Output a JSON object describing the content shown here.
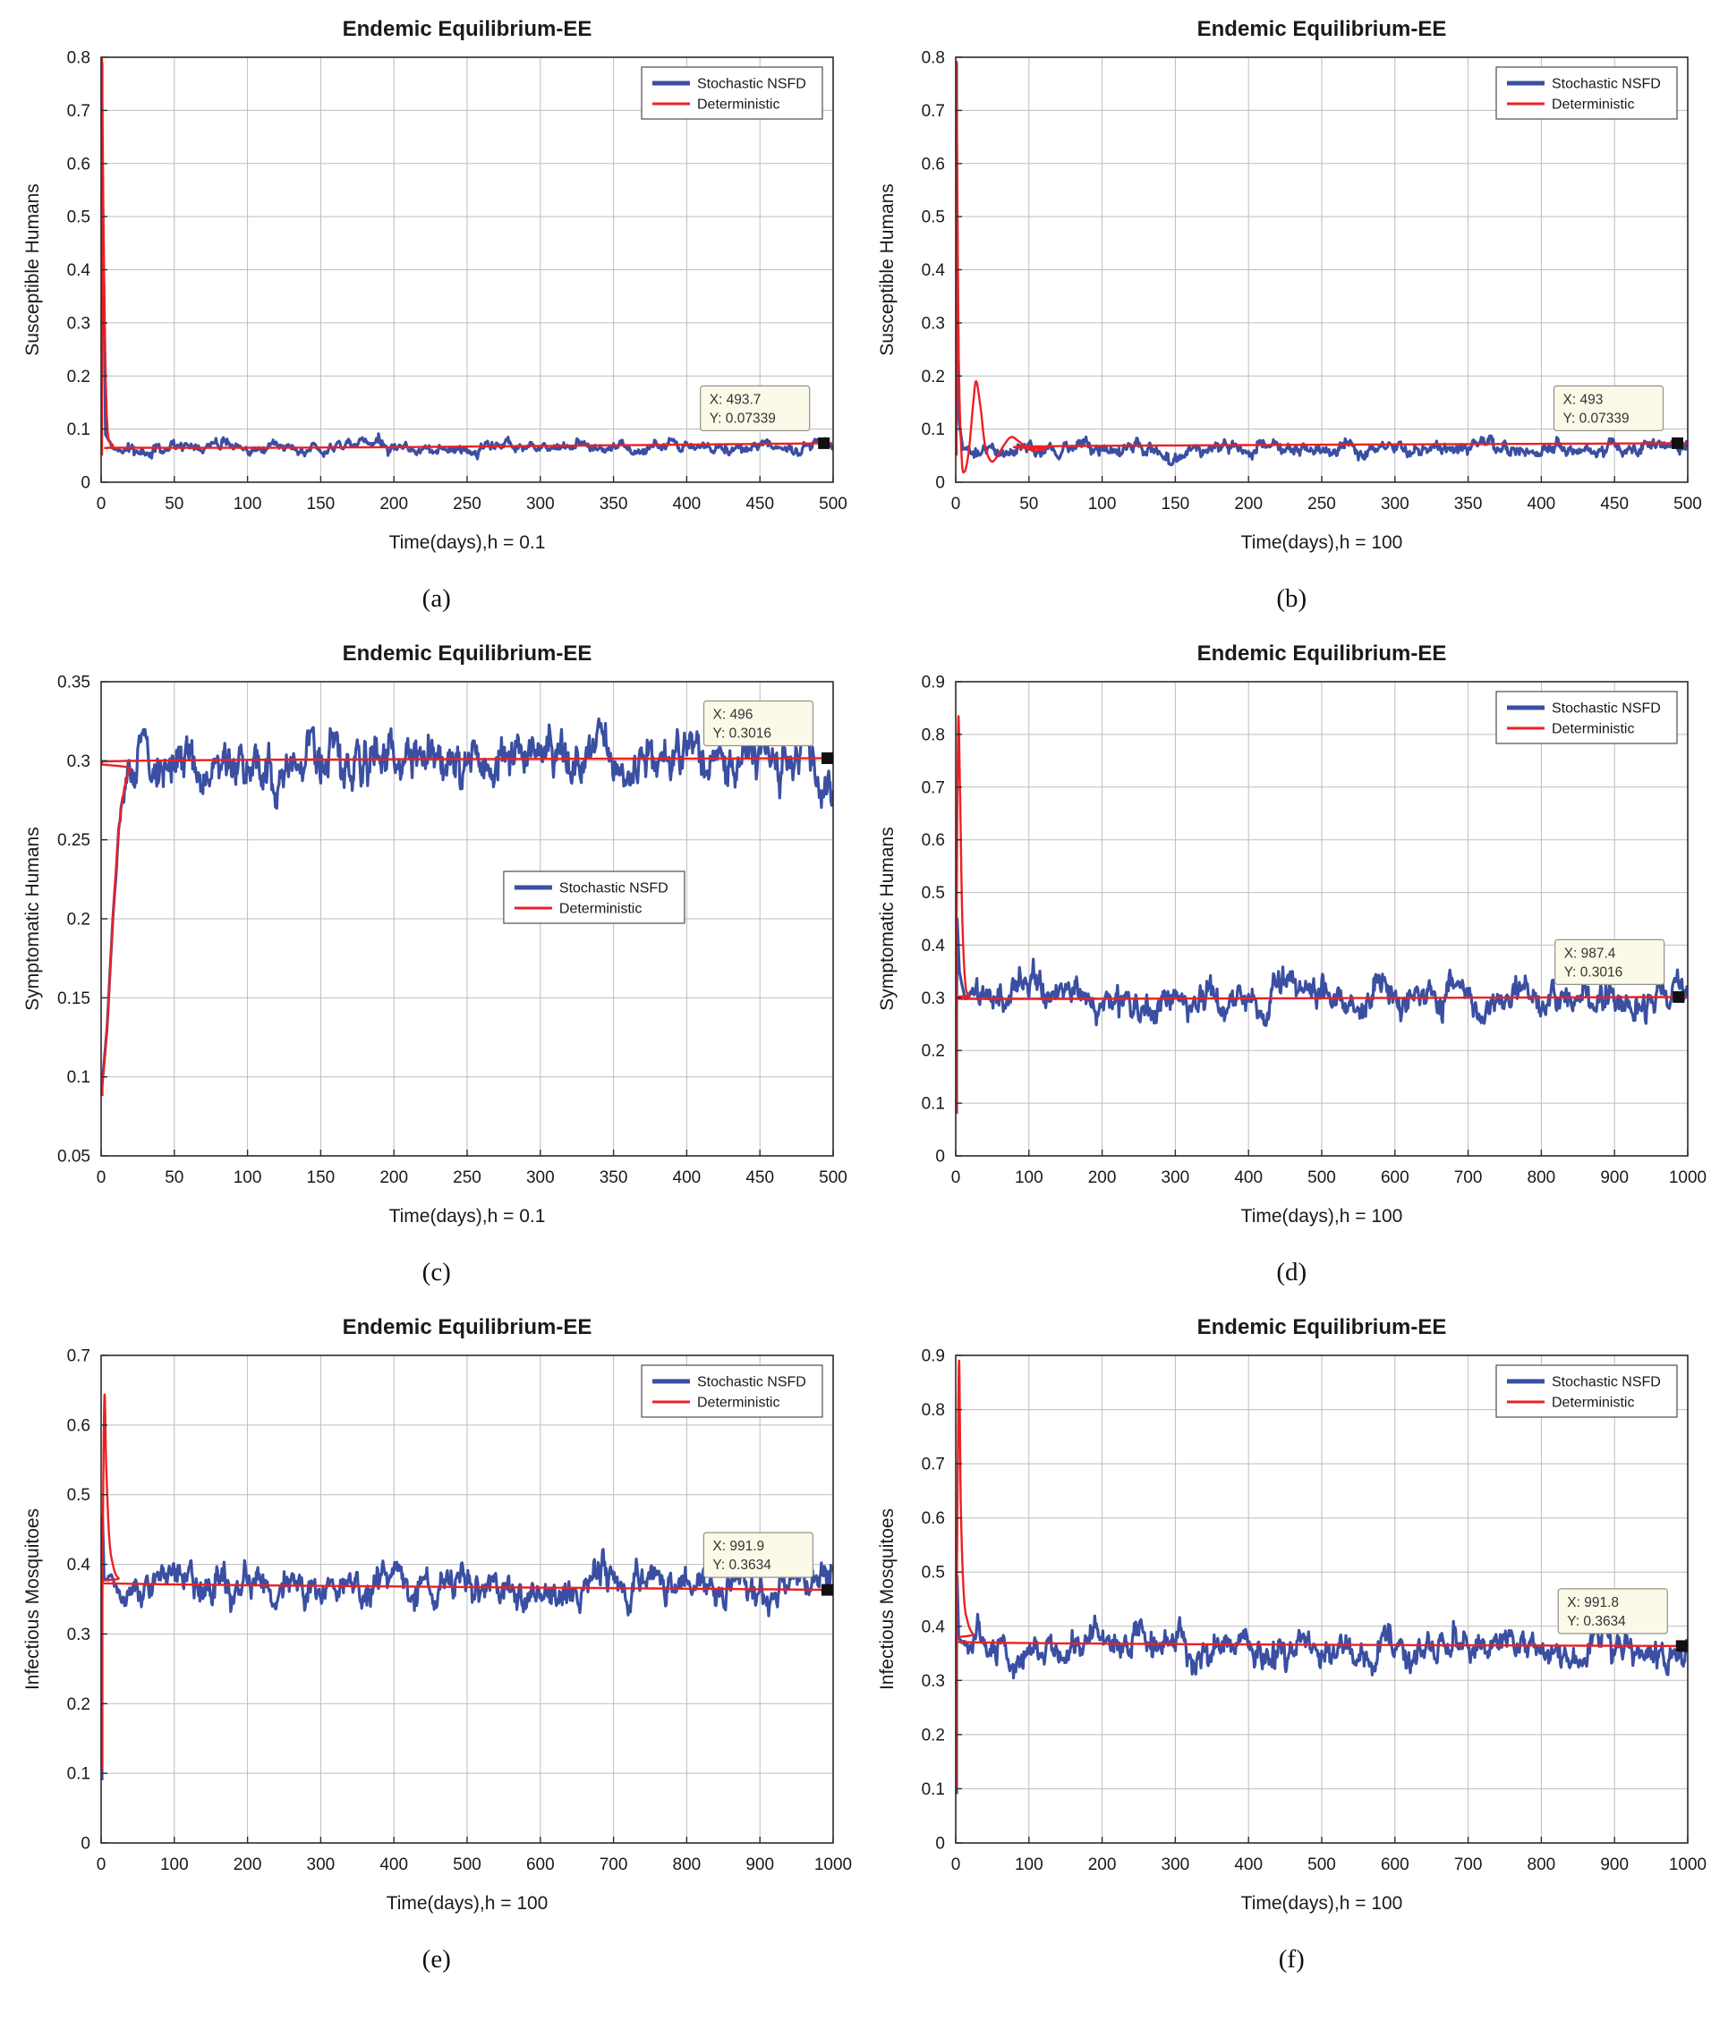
{
  "colors": {
    "stochastic": "#3a4fa2",
    "deterministic": "#ec2024",
    "grid": "#bdbdbd",
    "axis": "#2b2b2b",
    "datatip_bg": "#fbf9e8",
    "datatip_border": "#93938a",
    "marker": "#111111"
  },
  "chart_data": [
    {
      "id": "a",
      "type": "line",
      "caption": "(a)",
      "title": "Endemic Equilibrium-EE",
      "xlabel": "Time(days),h = 0.1",
      "ylabel": "Susceptible Humans",
      "xlim": [
        0,
        500
      ],
      "ylim": [
        0,
        0.8
      ],
      "xticks": [
        0,
        50,
        100,
        150,
        200,
        250,
        300,
        350,
        400,
        450,
        500
      ],
      "yticks": [
        0,
        0.1,
        0.2,
        0.3,
        0.4,
        0.5,
        0.6,
        0.7,
        0.8
      ],
      "grid": true,
      "legend_pos": "top-right",
      "datatip": {
        "x": 493.7,
        "y": 0.07339,
        "lines": [
          "X: 493.7",
          "Y: 0.07339"
        ]
      },
      "series": [
        {
          "name": "Stochastic NSFD",
          "role": "stochastic",
          "color": "#3a4fa2",
          "keypoints": [
            [
              0,
              0.79
            ],
            [
              3,
              0.09
            ],
            [
              8,
              0.066
            ],
            [
              500,
              0.066
            ]
          ],
          "noise_amp": 0.006,
          "noise_start": 4
        },
        {
          "name": "Deterministic",
          "role": "deterministic",
          "color": "#ec2024",
          "keypoints": [
            [
              0,
              0.05
            ],
            [
              0.3,
              0.79
            ],
            [
              2,
              0.4
            ],
            [
              4,
              0.12
            ],
            [
              8,
              0.07
            ],
            [
              20,
              0.065
            ],
            [
              200,
              0.066
            ],
            [
              500,
              0.0734
            ]
          ]
        }
      ]
    },
    {
      "id": "b",
      "type": "line",
      "caption": "(b)",
      "title": "Endemic Equilibrium-EE",
      "xlabel": "Time(days),h = 100",
      "ylabel": "Susceptible Humans",
      "xlim": [
        0,
        500
      ],
      "ylim": [
        0,
        0.8
      ],
      "xticks": [
        0,
        50,
        100,
        150,
        200,
        250,
        300,
        350,
        400,
        450,
        500
      ],
      "yticks": [
        0,
        0.1,
        0.2,
        0.3,
        0.4,
        0.5,
        0.6,
        0.7,
        0.8
      ],
      "grid": true,
      "legend_pos": "top-right",
      "datatip": {
        "x": 493,
        "y": 0.07339,
        "lines": [
          "X: 493",
          "Y: 0.07339"
        ]
      },
      "series": [
        {
          "name": "Stochastic NSFD",
          "role": "stochastic",
          "color": "#3a4fa2",
          "keypoints": [
            [
              0,
              0.79
            ],
            [
              2,
              0.12
            ],
            [
              5,
              0.06
            ],
            [
              500,
              0.066
            ]
          ],
          "noise_amp": 0.008,
          "noise_start": 3
        },
        {
          "name": "Deterministic",
          "role": "deterministic",
          "color": "#ec2024",
          "keypoints": [
            [
              0,
              0.05
            ],
            [
              0.3,
              0.79
            ],
            [
              2,
              0.25
            ],
            [
              4,
              0.05
            ],
            [
              6,
              0.02
            ],
            [
              9,
              0.06
            ],
            [
              12,
              0.15
            ],
            [
              14,
              0.19
            ],
            [
              17,
              0.14
            ],
            [
              20,
              0.07
            ],
            [
              24,
              0.04
            ],
            [
              28,
              0.047
            ],
            [
              33,
              0.07
            ],
            [
              38,
              0.085
            ],
            [
              44,
              0.075
            ],
            [
              52,
              0.06
            ],
            [
              62,
              0.063
            ],
            [
              75,
              0.068
            ],
            [
              500,
              0.0734
            ]
          ]
        }
      ]
    },
    {
      "id": "c",
      "type": "line",
      "caption": "(c)",
      "title": "Endemic Equilibrium-EE",
      "xlabel": "Time(days),h = 0.1",
      "ylabel": "Symptomatic Humans",
      "xlim": [
        0,
        500
      ],
      "ylim": [
        0.05,
        0.35
      ],
      "xticks": [
        0,
        50,
        100,
        150,
        200,
        250,
        300,
        350,
        400,
        450,
        500
      ],
      "yticks": [
        0.05,
        0.1,
        0.15,
        0.2,
        0.25,
        0.3,
        0.35
      ],
      "grid": true,
      "legend_pos": "mid-right",
      "datatip": {
        "x": 496,
        "y": 0.3016,
        "lines": [
          "X: 496",
          "Y: 0.3016"
        ]
      },
      "series": [
        {
          "name": "Stochastic NSFD",
          "role": "stochastic",
          "color": "#3a4fa2",
          "keypoints": [
            [
              0,
              0.088
            ],
            [
              4,
              0.13
            ],
            [
              8,
              0.2
            ],
            [
              12,
              0.255
            ],
            [
              16,
              0.283
            ],
            [
              20,
              0.295
            ],
            [
              26,
              0.3
            ],
            [
              500,
              0.3
            ]
          ],
          "noise_amp": 0.009,
          "noise_start": 8
        },
        {
          "name": "Deterministic",
          "role": "deterministic",
          "color": "#ec2024",
          "keypoints": [
            [
              0,
              0.088
            ],
            [
              4,
              0.13
            ],
            [
              8,
              0.2
            ],
            [
              12,
              0.255
            ],
            [
              16,
              0.283
            ],
            [
              20,
              0.295
            ],
            [
              26,
              0.3
            ],
            [
              500,
              0.3016
            ]
          ]
        }
      ]
    },
    {
      "id": "d",
      "type": "line",
      "caption": "(d)",
      "title": "Endemic Equilibrium-EE",
      "xlabel": "Time(days),h = 100",
      "ylabel": "Symptomatic Humans",
      "xlim": [
        0,
        1000
      ],
      "ylim": [
        0,
        0.9
      ],
      "xticks": [
        0,
        100,
        200,
        300,
        400,
        500,
        600,
        700,
        800,
        900,
        1000
      ],
      "yticks": [
        0,
        0.1,
        0.2,
        0.3,
        0.4,
        0.5,
        0.6,
        0.7,
        0.8,
        0.9
      ],
      "grid": true,
      "legend_pos": "top-right",
      "datatip": {
        "x": 987.4,
        "y": 0.3016,
        "lines": [
          "X: 987.4",
          "Y: 0.3016"
        ]
      },
      "series": [
        {
          "name": "Stochastic NSFD",
          "role": "stochastic",
          "color": "#3a4fa2",
          "keypoints": [
            [
              0,
              0.08
            ],
            [
              2,
              0.45
            ],
            [
              5,
              0.35
            ],
            [
              12,
              0.3
            ],
            [
              1000,
              0.295
            ]
          ],
          "noise_amp": 0.018,
          "noise_start": 8
        },
        {
          "name": "Deterministic",
          "role": "deterministic",
          "color": "#ec2024",
          "keypoints": [
            [
              0,
              0.08
            ],
            [
              1.5,
              0.5
            ],
            [
              3.5,
              0.83
            ],
            [
              6,
              0.68
            ],
            [
              9,
              0.45
            ],
            [
              13,
              0.33
            ],
            [
              18,
              0.305
            ],
            [
              30,
              0.298
            ],
            [
              1000,
              0.3016
            ]
          ]
        }
      ]
    },
    {
      "id": "e",
      "type": "line",
      "caption": "(e)",
      "title": "Endemic Equilibrium-EE",
      "xlabel": "Time(days),h = 100",
      "ylabel": "Infectious Mosquitoes",
      "xlim": [
        0,
        1000
      ],
      "ylim": [
        0,
        0.7
      ],
      "xticks": [
        0,
        100,
        200,
        300,
        400,
        500,
        600,
        700,
        800,
        900,
        1000
      ],
      "yticks": [
        0,
        0.1,
        0.2,
        0.3,
        0.4,
        0.5,
        0.6,
        0.7
      ],
      "grid": true,
      "legend_pos": "top-right",
      "datatip": {
        "x": 991.9,
        "y": 0.3634,
        "lines": [
          "X: 991.9",
          "Y: 0.3634"
        ]
      },
      "series": [
        {
          "name": "Stochastic NSFD",
          "role": "stochastic",
          "color": "#3a4fa2",
          "keypoints": [
            [
              0,
              0.09
            ],
            [
              1.5,
              0.49
            ],
            [
              4,
              0.38
            ],
            [
              10,
              0.37
            ],
            [
              1000,
              0.368
            ]
          ],
          "noise_amp": 0.015,
          "noise_start": 4
        },
        {
          "name": "Deterministic",
          "role": "deterministic",
          "color": "#ec2024",
          "keypoints": [
            [
              0,
              0.105
            ],
            [
              2,
              0.4
            ],
            [
              4.5,
              0.64
            ],
            [
              7,
              0.54
            ],
            [
              11,
              0.44
            ],
            [
              16,
              0.4
            ],
            [
              24,
              0.38
            ],
            [
              45,
              0.372
            ],
            [
              1000,
              0.3634
            ]
          ]
        }
      ]
    },
    {
      "id": "f",
      "type": "line",
      "caption": "(f)",
      "title": "Endemic Equilibrium-EE",
      "xlabel": "Time(days),h = 100",
      "ylabel": "Infectious Mosquitoes",
      "xlim": [
        0,
        1000
      ],
      "ylim": [
        0,
        0.9
      ],
      "xticks": [
        0,
        100,
        200,
        300,
        400,
        500,
        600,
        700,
        800,
        900,
        1000
      ],
      "yticks": [
        0,
        0.1,
        0.2,
        0.3,
        0.4,
        0.5,
        0.6,
        0.7,
        0.8,
        0.9
      ],
      "grid": true,
      "legend_pos": "top-right",
      "datatip": {
        "x": 991.8,
        "y": 0.3634,
        "lines": [
          "X: 991.8",
          "Y: 0.3634"
        ]
      },
      "series": [
        {
          "name": "Stochastic NSFD",
          "role": "stochastic",
          "color": "#3a4fa2",
          "keypoints": [
            [
              0,
              0.09
            ],
            [
              1.5,
              0.52
            ],
            [
              4,
              0.38
            ],
            [
              10,
              0.365
            ],
            [
              1000,
              0.36
            ]
          ],
          "noise_amp": 0.018,
          "noise_start": 4
        },
        {
          "name": "Deterministic",
          "role": "deterministic",
          "color": "#ec2024",
          "keypoints": [
            [
              0,
              0.1
            ],
            [
              2,
              0.55
            ],
            [
              4.5,
              0.89
            ],
            [
              7,
              0.62
            ],
            [
              11,
              0.46
            ],
            [
              16,
              0.41
            ],
            [
              24,
              0.385
            ],
            [
              40,
              0.37
            ],
            [
              1000,
              0.3634
            ]
          ]
        }
      ]
    }
  ]
}
